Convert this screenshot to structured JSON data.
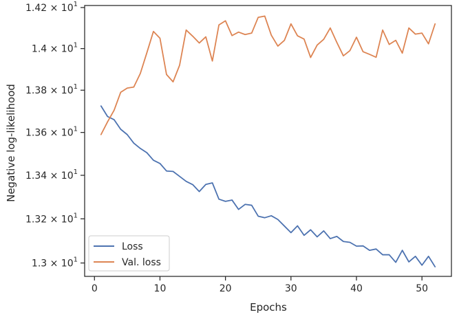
{
  "chart_data": {
    "type": "line",
    "title": "",
    "xlabel": "Epochs",
    "ylabel": "Negative log-likelihood",
    "x_scale": "linear",
    "y_scale": "log",
    "xlim": [
      -1.5,
      54.5
    ],
    "ylim": [
      12.94,
      14.21
    ],
    "grid": false,
    "legend_position": "lower-left",
    "x_ticks": [
      {
        "value": 0,
        "label": "0"
      },
      {
        "value": 10,
        "label": "10"
      },
      {
        "value": 20,
        "label": "20"
      },
      {
        "value": 30,
        "label": "30"
      },
      {
        "value": 40,
        "label": "40"
      },
      {
        "value": 50,
        "label": "50"
      }
    ],
    "y_ticks": [
      {
        "value": 13.0,
        "mantissa": "1.3",
        "base": "10",
        "exp": "1"
      },
      {
        "value": 13.2,
        "mantissa": "1.32",
        "base": "10",
        "exp": "1"
      },
      {
        "value": 13.4,
        "mantissa": "1.34",
        "base": "10",
        "exp": "1"
      },
      {
        "value": 13.6,
        "mantissa": "1.36",
        "base": "10",
        "exp": "1"
      },
      {
        "value": 13.8,
        "mantissa": "1.38",
        "base": "10",
        "exp": "1"
      },
      {
        "value": 14.0,
        "mantissa": "1.4",
        "base": "10",
        "exp": "1"
      },
      {
        "value": 14.2,
        "mantissa": "1.42",
        "base": "10",
        "exp": "1"
      }
    ],
    "x": [
      1,
      2,
      3,
      4,
      5,
      6,
      7,
      8,
      9,
      10,
      11,
      12,
      13,
      14,
      15,
      16,
      17,
      18,
      19,
      20,
      21,
      22,
      23,
      24,
      25,
      26,
      27,
      28,
      29,
      30,
      31,
      32,
      33,
      34,
      35,
      36,
      37,
      38,
      39,
      40,
      41,
      42,
      43,
      44,
      45,
      46,
      47,
      48,
      49,
      50,
      51,
      52
    ],
    "series": [
      {
        "name": "Loss",
        "color": "#4c72b0",
        "values": [
          13.725,
          13.675,
          13.66,
          13.615,
          13.59,
          13.55,
          13.525,
          13.505,
          13.47,
          13.455,
          13.42,
          13.418,
          13.395,
          13.372,
          13.357,
          13.325,
          13.358,
          13.365,
          13.29,
          13.28,
          13.286,
          13.243,
          13.266,
          13.262,
          13.212,
          13.205,
          13.214,
          13.197,
          13.167,
          13.137,
          13.168,
          13.125,
          13.15,
          13.118,
          13.145,
          13.11,
          13.12,
          13.097,
          13.093,
          13.076,
          13.077,
          13.057,
          13.063,
          13.037,
          13.037,
          13.003,
          13.057,
          13.005,
          13.03,
          12.99,
          13.03,
          12.983
        ]
      },
      {
        "name": "Val. loss",
        "color": "#dd8452",
        "values": [
          13.59,
          13.65,
          13.705,
          13.79,
          13.81,
          13.815,
          13.88,
          13.98,
          14.083,
          14.05,
          13.875,
          13.84,
          13.92,
          14.09,
          14.06,
          14.027,
          14.057,
          13.94,
          14.115,
          14.135,
          14.063,
          14.08,
          14.068,
          14.075,
          14.152,
          14.158,
          14.065,
          14.012,
          14.04,
          14.12,
          14.062,
          14.046,
          13.957,
          14.017,
          14.045,
          14.1,
          14.03,
          13.965,
          13.99,
          14.055,
          13.985,
          13.972,
          13.958,
          14.09,
          14.02,
          14.04,
          13.978,
          14.1,
          14.07,
          14.075,
          14.023,
          14.12
        ]
      }
    ]
  }
}
